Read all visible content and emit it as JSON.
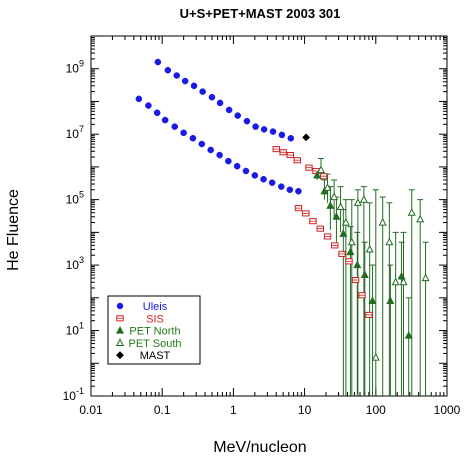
{
  "chart_data": {
    "type": "scatter",
    "title": "U+S+PET+MAST 2003 301",
    "xlabel": "MeV/nucleon",
    "ylabel": "He Fluence",
    "x_scale": "log",
    "y_scale": "log",
    "xlim": [
      0.01,
      1000
    ],
    "ylim": [
      0.1,
      10000000000
    ],
    "x_ticks": [
      {
        "value": 0.01,
        "label": "0.01"
      },
      {
        "value": 0.1,
        "label": "0.1"
      },
      {
        "value": 1,
        "label": "1"
      },
      {
        "value": 10,
        "label": "10"
      },
      {
        "value": 100,
        "label": "100"
      },
      {
        "value": 1000,
        "label": "1000"
      }
    ],
    "y_ticks": [
      {
        "value": 0.1,
        "base": "10",
        "exp": "-1"
      },
      {
        "value": 10,
        "base": "10",
        "exp": "1"
      },
      {
        "value": 1000,
        "base": "10",
        "exp": "3"
      },
      {
        "value": 100000,
        "base": "10",
        "exp": "5"
      },
      {
        "value": 10000000,
        "base": "10",
        "exp": "7"
      },
      {
        "value": 1000000000,
        "base": "10",
        "exp": "9"
      }
    ],
    "legend_position": "bottom-left",
    "series": [
      {
        "name": "Uleis",
        "marker": "circle-filled",
        "color": "#1a1ae6",
        "label_color": "#1a1ae6",
        "points": [
          {
            "x": 0.087,
            "y": 1600000000
          },
          {
            "x": 0.12,
            "y": 900000000
          },
          {
            "x": 0.16,
            "y": 620000000
          },
          {
            "x": 0.21,
            "y": 420000000
          },
          {
            "x": 0.28,
            "y": 300000000
          },
          {
            "x": 0.37,
            "y": 200000000
          },
          {
            "x": 0.5,
            "y": 135000000
          },
          {
            "x": 0.65,
            "y": 90000000
          },
          {
            "x": 0.87,
            "y": 55000000
          },
          {
            "x": 1.15,
            "y": 37000000
          },
          {
            "x": 1.55,
            "y": 25000000
          },
          {
            "x": 2.05,
            "y": 17000000
          },
          {
            "x": 2.7,
            "y": 14000000
          },
          {
            "x": 3.6,
            "y": 12000000
          },
          {
            "x": 4.8,
            "y": 9500000
          },
          {
            "x": 6.4,
            "y": 7500000
          },
          {
            "x": 0.047,
            "y": 120000000
          },
          {
            "x": 0.064,
            "y": 75000000
          },
          {
            "x": 0.085,
            "y": 45000000
          },
          {
            "x": 0.11,
            "y": 27000000
          },
          {
            "x": 0.15,
            "y": 17000000
          },
          {
            "x": 0.2,
            "y": 11000000
          },
          {
            "x": 0.27,
            "y": 7500000
          },
          {
            "x": 0.36,
            "y": 5000000
          },
          {
            "x": 0.48,
            "y": 3300000
          },
          {
            "x": 0.64,
            "y": 2300000
          },
          {
            "x": 0.85,
            "y": 1500000
          },
          {
            "x": 1.13,
            "y": 1050000
          },
          {
            "x": 1.5,
            "y": 750000
          },
          {
            "x": 2.0,
            "y": 550000
          },
          {
            "x": 2.65,
            "y": 420000
          },
          {
            "x": 3.5,
            "y": 330000
          },
          {
            "x": 4.7,
            "y": 250000
          },
          {
            "x": 6.2,
            "y": 200000
          },
          {
            "x": 8.2,
            "y": 180000
          }
        ]
      },
      {
        "name": "SIS",
        "marker": "square-open",
        "color": "#d42020",
        "label_color": "#d42020",
        "points": [
          {
            "x": 4.0,
            "y": 3500000
          },
          {
            "x": 5.0,
            "y": 2800000
          },
          {
            "x": 6.3,
            "y": 2300000
          },
          {
            "x": 7.9,
            "y": 1600000
          },
          {
            "x": 11.5,
            "y": 950000
          },
          {
            "x": 14.5,
            "y": 750000
          },
          {
            "x": 18.5,
            "y": 520000
          },
          {
            "x": 8.2,
            "y": 55000
          },
          {
            "x": 10.4,
            "y": 38000
          },
          {
            "x": 13.1,
            "y": 22000
          },
          {
            "x": 16.6,
            "y": 13000
          },
          {
            "x": 21,
            "y": 7500
          },
          {
            "x": 26.5,
            "y": 4000
          },
          {
            "x": 33.5,
            "y": 2200
          },
          {
            "x": 42,
            "y": 1300
          },
          {
            "x": 52,
            "y": 350
          },
          {
            "x": 64,
            "y": 120
          },
          {
            "x": 80,
            "y": 30
          }
        ]
      },
      {
        "name": "PET North",
        "marker": "triangle-filled",
        "color": "#236b23",
        "label_color": "#1e7a1e",
        "points": [
          {
            "x": 15,
            "y": 550000,
            "hi": 800000,
            "lo": 400000
          },
          {
            "x": 19,
            "y": 180000,
            "hi": 400000,
            "lo": 100000
          },
          {
            "x": 23,
            "y": 65000,
            "hi": 250000,
            "lo": 12000
          },
          {
            "x": 28,
            "y": 30000,
            "hi": 120000,
            "lo": 5000
          },
          {
            "x": 35,
            "y": 9000,
            "hi": 50000,
            "lo": 0.1
          },
          {
            "x": 44,
            "y": 2500,
            "hi": 15000,
            "lo": 0.1
          },
          {
            "x": 55,
            "y": 1000,
            "hi": 10000,
            "lo": 0.1
          },
          {
            "x": 70,
            "y": 500,
            "hi": 5000,
            "lo": 0.1
          },
          {
            "x": 90,
            "y": 80,
            "hi": 1000,
            "lo": 0.1
          },
          {
            "x": 160,
            "y": 80,
            "hi": 1000,
            "lo": 0.1
          },
          {
            "x": 230,
            "y": 450,
            "hi": 5000,
            "lo": 0.1
          },
          {
            "x": 290,
            "y": 7,
            "hi": 100,
            "lo": 0.1
          }
        ]
      },
      {
        "name": "PET South",
        "marker": "triangle-open",
        "color": "#236b23",
        "label_color": "#1e7a1e",
        "points": [
          {
            "x": 17,
            "y": 800000,
            "hi": 1800000,
            "lo": 400000
          },
          {
            "x": 21,
            "y": 230000,
            "hi": 600000,
            "lo": 80000
          },
          {
            "x": 26,
            "y": 120000,
            "hi": 400000,
            "lo": 30000
          },
          {
            "x": 32,
            "y": 60000,
            "hi": 250000,
            "lo": 10000
          },
          {
            "x": 38,
            "y": 20000,
            "hi": 100000,
            "lo": 0.1
          },
          {
            "x": 46,
            "y": 5000,
            "hi": 100000,
            "lo": 0.1
          },
          {
            "x": 56,
            "y": 80000,
            "hi": 200000,
            "lo": 0.1
          },
          {
            "x": 68,
            "y": 100000,
            "hi": 250000,
            "lo": 0.1
          },
          {
            "x": 82,
            "y": 3000,
            "hi": 80000,
            "lo": 0.1
          },
          {
            "x": 100,
            "y": 1.5,
            "hi": 200000,
            "lo": 0.1
          },
          {
            "x": 125,
            "y": 20000,
            "hi": 120000,
            "lo": 0.1
          },
          {
            "x": 155,
            "y": 5000,
            "hi": 80000,
            "lo": 0.1
          },
          {
            "x": 190,
            "y": 300,
            "hi": 10000,
            "lo": 0.1
          },
          {
            "x": 245,
            "y": 300,
            "hi": 10000,
            "lo": 0.1
          },
          {
            "x": 320,
            "y": 40000,
            "hi": 200000,
            "lo": 0.1
          },
          {
            "x": 420,
            "y": 25000,
            "hi": 100000,
            "lo": 0.1
          },
          {
            "x": 500,
            "y": 400,
            "hi": 5000,
            "lo": 0.1
          }
        ]
      },
      {
        "name": "MAST",
        "marker": "diamond-filled",
        "color": "#000000",
        "label_color": "#000000",
        "points": [
          {
            "x": 10.5,
            "y": 8000000
          }
        ]
      }
    ]
  }
}
